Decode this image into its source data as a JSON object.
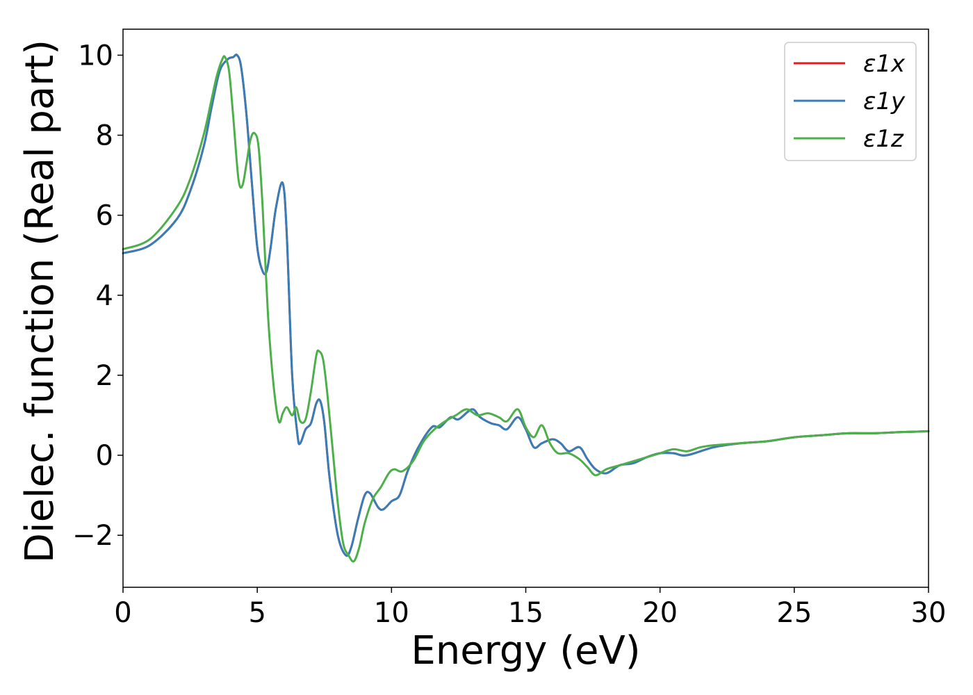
{
  "chart_data": {
    "type": "line",
    "xlabel": "Energy (eV)",
    "ylabel": "Dielec. function (Real part)",
    "xlim": [
      0,
      30
    ],
    "ylim": [
      -3.3,
      10.65
    ],
    "xticks": [
      0,
      5,
      10,
      15,
      20,
      25,
      30
    ],
    "yticks": [
      -2,
      0,
      2,
      4,
      6,
      8,
      10
    ],
    "ytick_labels": [
      "−2",
      "0",
      "2",
      "4",
      "6",
      "8",
      "10"
    ],
    "grid": false,
    "legend_position": "top-right",
    "series": [
      {
        "name": "ε1x",
        "color": "#e41a1c",
        "x": [
          0,
          1,
          2,
          2.5,
          3,
          3.3,
          3.6,
          3.9,
          4.1,
          4.25,
          4.4,
          4.6,
          4.8,
          5.0,
          5.2,
          5.35,
          5.5,
          5.7,
          5.95,
          6.1,
          6.3,
          6.5,
          6.6,
          6.8,
          7.0,
          7.2,
          7.35,
          7.5,
          7.7,
          8.0,
          8.3,
          8.5,
          8.75,
          9.0,
          9.2,
          9.5,
          9.7,
          10.0,
          10.3,
          10.6,
          11.0,
          11.5,
          11.8,
          12.2,
          12.5,
          13.0,
          13.3,
          13.7,
          14.0,
          14.3,
          14.7,
          15.0,
          15.3,
          15.6,
          16.0,
          16.3,
          16.6,
          17.0,
          17.3,
          17.6,
          18.0,
          18.5,
          19.0,
          19.5,
          20.0,
          20.5,
          21.0,
          22.0,
          23.0,
          24.0,
          25.0,
          26.0,
          27.0,
          28.0,
          29.0,
          30.0
        ],
        "values": [
          5.05,
          5.25,
          5.9,
          6.6,
          7.7,
          8.7,
          9.6,
          9.9,
          9.95,
          10.0,
          9.7,
          8.5,
          6.8,
          5.2,
          4.6,
          4.6,
          5.2,
          6.2,
          6.8,
          5.5,
          2.0,
          0.5,
          0.3,
          0.65,
          0.8,
          1.3,
          1.35,
          0.8,
          -0.6,
          -2.0,
          -2.5,
          -2.3,
          -1.6,
          -1.0,
          -0.95,
          -1.3,
          -1.35,
          -1.15,
          -1.0,
          -0.4,
          0.2,
          0.7,
          0.7,
          0.95,
          0.9,
          1.15,
          0.95,
          0.8,
          0.75,
          0.65,
          0.95,
          0.65,
          0.2,
          0.3,
          0.4,
          0.3,
          0.1,
          0.2,
          -0.1,
          -0.35,
          -0.45,
          -0.25,
          -0.2,
          -0.05,
          0.05,
          0.05,
          0.0,
          0.2,
          0.3,
          0.35,
          0.45,
          0.5,
          0.55,
          0.55,
          0.58,
          0.6
        ]
      },
      {
        "name": "ε1y",
        "color": "#377eb8",
        "x": [
          0,
          1,
          2,
          2.5,
          3,
          3.3,
          3.6,
          3.9,
          4.1,
          4.25,
          4.4,
          4.6,
          4.8,
          5.0,
          5.2,
          5.35,
          5.5,
          5.7,
          5.95,
          6.1,
          6.3,
          6.5,
          6.6,
          6.8,
          7.0,
          7.2,
          7.35,
          7.5,
          7.7,
          8.0,
          8.3,
          8.5,
          8.75,
          9.0,
          9.2,
          9.5,
          9.7,
          10.0,
          10.3,
          10.6,
          11.0,
          11.5,
          11.8,
          12.2,
          12.5,
          13.0,
          13.3,
          13.7,
          14.0,
          14.3,
          14.7,
          15.0,
          15.3,
          15.6,
          16.0,
          16.3,
          16.6,
          17.0,
          17.3,
          17.6,
          18.0,
          18.5,
          19.0,
          19.5,
          20.0,
          20.5,
          21.0,
          22.0,
          23.0,
          24.0,
          25.0,
          26.0,
          27.0,
          28.0,
          29.0,
          30.0
        ],
        "values": [
          5.05,
          5.25,
          5.9,
          6.6,
          7.7,
          8.7,
          9.6,
          9.9,
          9.95,
          10.0,
          9.7,
          8.5,
          6.8,
          5.2,
          4.6,
          4.6,
          5.2,
          6.2,
          6.8,
          5.5,
          2.0,
          0.5,
          0.3,
          0.65,
          0.8,
          1.3,
          1.35,
          0.8,
          -0.6,
          -2.0,
          -2.5,
          -2.3,
          -1.6,
          -1.0,
          -0.95,
          -1.3,
          -1.35,
          -1.15,
          -1.0,
          -0.4,
          0.2,
          0.7,
          0.7,
          0.95,
          0.9,
          1.15,
          0.95,
          0.8,
          0.75,
          0.65,
          0.95,
          0.65,
          0.2,
          0.3,
          0.4,
          0.3,
          0.1,
          0.2,
          -0.1,
          -0.35,
          -0.45,
          -0.25,
          -0.2,
          -0.05,
          0.05,
          0.05,
          0.0,
          0.2,
          0.3,
          0.35,
          0.45,
          0.5,
          0.55,
          0.55,
          0.58,
          0.6
        ]
      },
      {
        "name": "ε1z",
        "color": "#4daf4a",
        "x": [
          0,
          1,
          2,
          2.5,
          3,
          3.3,
          3.5,
          3.7,
          3.8,
          3.95,
          4.1,
          4.3,
          4.45,
          4.6,
          4.75,
          4.9,
          5.05,
          5.2,
          5.4,
          5.6,
          5.8,
          5.95,
          6.1,
          6.3,
          6.45,
          6.6,
          6.8,
          7.0,
          7.2,
          7.3,
          7.45,
          7.6,
          7.8,
          8.0,
          8.2,
          8.4,
          8.6,
          8.8,
          9.0,
          9.3,
          9.6,
          9.9,
          10.1,
          10.4,
          10.8,
          11.2,
          11.6,
          12.0,
          12.4,
          12.8,
          13.2,
          13.6,
          14.0,
          14.3,
          14.7,
          15.0,
          15.3,
          15.6,
          15.9,
          16.2,
          16.6,
          17.0,
          17.3,
          17.6,
          18.0,
          18.5,
          19.0,
          19.5,
          20.0,
          20.5,
          21.0,
          21.5,
          22.0,
          23.0,
          24.0,
          25.0,
          26.0,
          27.0,
          28.0,
          29.0,
          30.0
        ],
        "values": [
          5.15,
          5.4,
          6.2,
          6.9,
          8.0,
          8.9,
          9.5,
          9.9,
          9.95,
          9.6,
          8.5,
          6.9,
          6.75,
          7.3,
          7.9,
          8.05,
          7.7,
          6.2,
          3.5,
          1.8,
          0.85,
          1.05,
          1.2,
          1.0,
          1.2,
          0.85,
          0.9,
          1.6,
          2.5,
          2.6,
          2.4,
          1.6,
          0.2,
          -1.2,
          -2.2,
          -2.5,
          -2.65,
          -2.3,
          -1.7,
          -1.1,
          -0.8,
          -0.45,
          -0.35,
          -0.4,
          -0.15,
          0.35,
          0.65,
          0.85,
          1.0,
          1.15,
          1.0,
          1.05,
          0.95,
          0.85,
          1.15,
          0.7,
          0.45,
          0.75,
          0.3,
          0.05,
          0.05,
          -0.1,
          -0.3,
          -0.5,
          -0.35,
          -0.25,
          -0.15,
          -0.05,
          0.05,
          0.15,
          0.1,
          0.2,
          0.25,
          0.3,
          0.35,
          0.45,
          0.5,
          0.55,
          0.55,
          0.58,
          0.6
        ]
      }
    ]
  }
}
